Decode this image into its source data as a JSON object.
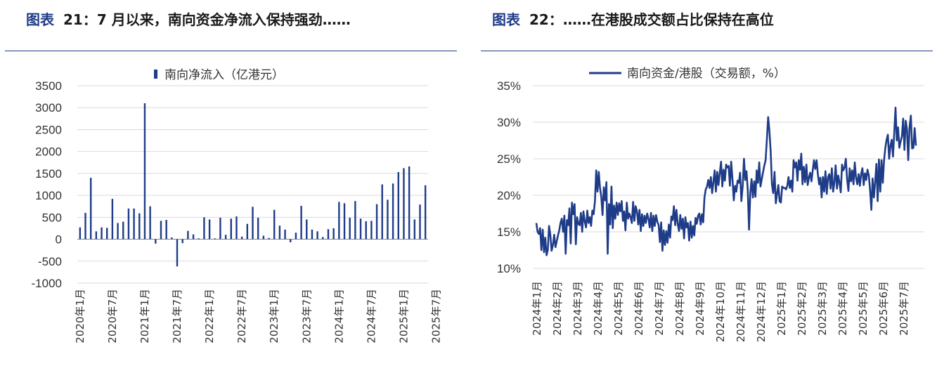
{
  "titles": {
    "left": {
      "lead": "图表",
      "num": "21：",
      "text": "7 月以来，南向资金净流入保持强劲……"
    },
    "right": {
      "lead": "图表",
      "num": "22：",
      "text": "……在港股成交额占比保持在高位"
    }
  },
  "colors": {
    "accent": "#1f3c88",
    "series": "#1f3c88",
    "grid": "#d9d9d9"
  },
  "chart_data": [
    {
      "type": "bar",
      "legend": "南向净流入（亿港元）",
      "legend_position": "top",
      "grid": true,
      "ylim": [
        -1000,
        3500
      ],
      "yticks": [
        -1000,
        -500,
        0,
        500,
        1000,
        1500,
        2000,
        2500,
        3000,
        3500
      ],
      "xticks": [
        "2020年1月",
        "2020年7月",
        "2021年1月",
        "2021年7月",
        "2022年1月",
        "2022年7月",
        "2023年1月",
        "2023年7月",
        "2024年1月",
        "2024年7月",
        "2025年1月",
        "2025年7月"
      ],
      "values": [
        270,
        600,
        1400,
        180,
        270,
        260,
        920,
        370,
        400,
        700,
        700,
        590,
        3100,
        750,
        -100,
        420,
        440,
        40,
        -620,
        -90,
        190,
        110,
        20,
        500,
        450,
        20,
        490,
        100,
        470,
        520,
        60,
        350,
        740,
        490,
        80,
        30,
        670,
        310,
        220,
        -70,
        150,
        760,
        450,
        220,
        180,
        50,
        230,
        250,
        850,
        820,
        490,
        870,
        470,
        410,
        420,
        800,
        1250,
        900,
        1270,
        1530,
        1620,
        1660,
        450,
        790,
        1230
      ]
    },
    {
      "type": "line",
      "legend": "南向资金/港股（交易额，%）",
      "legend_position": "top",
      "grid": true,
      "ylim": [
        10,
        35
      ],
      "yticks": [
        "10%",
        "15%",
        "20%",
        "25%",
        "30%",
        "35%"
      ],
      "xticks": [
        "2024年1月",
        "2024年2月",
        "2024年3月",
        "2024年4月",
        "2024年5月",
        "2024年6月",
        "2024年7月",
        "2024年8月",
        "2024年9月",
        "2024年10月",
        "2024年11月",
        "2024年12月",
        "2025年1月",
        "2025年2月",
        "2025年3月",
        "2025年4月",
        "2025年5月",
        "2025年6月",
        "2025年7月"
      ],
      "values": [
        16.2,
        15.0,
        14.7,
        15.5,
        12.5,
        15.3,
        12.2,
        14.2,
        11.8,
        12.5,
        15.8,
        14.6,
        12.4,
        13.2,
        14.6,
        12.9,
        13.7,
        14.5,
        15.2,
        16.2,
        16.8,
        15.0,
        17.2,
        12.0,
        16.6,
        15.9,
        18.2,
        13.4,
        19.0,
        17.4,
        18.8,
        13.3,
        17.0,
        16.1,
        15.9,
        17.6,
        15.0,
        17.8,
        16.4,
        15.6,
        17.9,
        16.2,
        17.0,
        15.8,
        17.9,
        17.4,
        19.2,
        23.4,
        20.5,
        23.2,
        21.0,
        19.8,
        17.3,
        21.1,
        19.3,
        21.8,
        12.0,
        18.8,
        16.0,
        21.2,
        15.5,
        18.6,
        16.8,
        19.0,
        17.3,
        18.9,
        17.8,
        19.2,
        16.5,
        17.8,
        15.2,
        19.0,
        16.8,
        17.5,
        17.0,
        16.2,
        19.1,
        16.5,
        18.5,
        17.8,
        16.0,
        18.0,
        15.1,
        17.4,
        15.8,
        17.2,
        16.2,
        17.5,
        16.8,
        15.6,
        17.6,
        15.1,
        17.2,
        15.8,
        17.3,
        16.4,
        15.9,
        13.6,
        16.3,
        12.4,
        15.2,
        13.2,
        15.1,
        13.5,
        16.0,
        14.2,
        17.1,
        16.6,
        18.5,
        15.9,
        18.0,
        16.1,
        15.1,
        17.3,
        15.4,
        16.8,
        14.1,
        17.0,
        15.6,
        16.2,
        13.8,
        16.4,
        14.2,
        15.8,
        14.5,
        16.9,
        16.1,
        17.2,
        17.5,
        16.0,
        17.4,
        16.3,
        19.7,
        20.8,
        21.2,
        22.1,
        21.0,
        22.5,
        20.3,
        21.8,
        23.4,
        20.5,
        23.2,
        21.4,
        23.0,
        24.6,
        21.2,
        23.5,
        22.0,
        24.2,
        23.8,
        24.0,
        21.3,
        24.6,
        22.1,
        19.3,
        21.3,
        20.5,
        22.0,
        21.7,
        23.1,
        19.2,
        21.3,
        25.0,
        22.1,
        23.3,
        20.7,
        15.3,
        20.3,
        22.2,
        19.7,
        21.9,
        19.8,
        23.4,
        21.7,
        24.5,
        21.2,
        22.2,
        23.2,
        24.1,
        24.8,
        27.7,
        30.7,
        28.8,
        26.0,
        21.5,
        20.3,
        23.2,
        18.9,
        20.2,
        21.4,
        19.2,
        19.0,
        21.2,
        21.0,
        21.0,
        20.8,
        21.3,
        22.5,
        21.0,
        22.0,
        20.5,
        24.8,
        23.8,
        24.5,
        22.0,
        24.8,
        23.5,
        25.7,
        21.5,
        23.9,
        21.8,
        24.2,
        21.4,
        22.4,
        23.1,
        21.9,
        23.4,
        24.8,
        23.6,
        24.8,
        22.9,
        21.5,
        22.4,
        19.7,
        22.5,
        20.5,
        23.3,
        20.2,
        22.5,
        22.9,
        20.9,
        23.7,
        20.5,
        21.7,
        24.1,
        20.9,
        22.7,
        21.7,
        20.4,
        24.2,
        23.4,
        23.8,
        25.0,
        22.2,
        20.6,
        23.7,
        21.9,
        23.4,
        21.5,
        24.5,
        22.4,
        21.5,
        22.9,
        21.3,
        22.9,
        23.7,
        21.4,
        23.0,
        22.1,
        23.5,
        22.7,
        20.7,
        18.0,
        22.3,
        19.7,
        21.8,
        24.3,
        19.2,
        24.9,
        20.5,
        24.8,
        21.7,
        24.8,
        26.5,
        27.6,
        28.3,
        25.0,
        26.8,
        27.6,
        25.3,
        28.6,
        32.0,
        27.5,
        29.3,
        26.5,
        27.4,
        28.1,
        30.5,
        26.2,
        30.2,
        29.0,
        24.8,
        29.3,
        30.9,
        26.4,
        26.5,
        29.2,
        26.8
      ]
    }
  ]
}
